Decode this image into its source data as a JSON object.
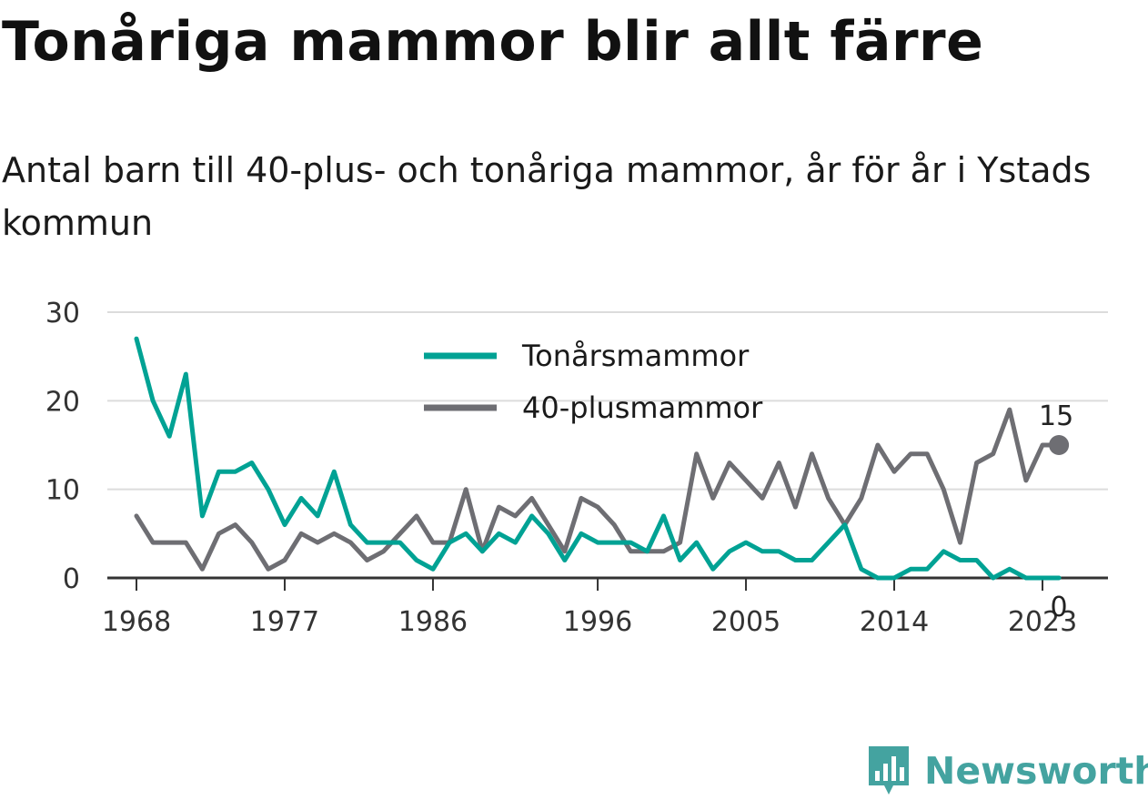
{
  "title": "Tonåriga mammor blir allt färre",
  "subtitle": "Antal barn till 40-plus- och tonåriga mammor, år för år i Ystads kommun",
  "brand": {
    "name": "Newsworthy",
    "color": "#44a3a0",
    "icon": "bar-chart-badge-icon"
  },
  "chart_data": {
    "type": "line",
    "xlim": [
      1967,
      2027
    ],
    "ylim": [
      0,
      30
    ],
    "x_ticks": [
      1968,
      1977,
      1986,
      1996,
      2005,
      2014,
      2023
    ],
    "y_ticks": [
      0,
      10,
      20,
      30
    ],
    "grid": true,
    "legend_position": "top-center",
    "x": [
      1968,
      1969,
      1970,
      1971,
      1972,
      1973,
      1974,
      1975,
      1976,
      1977,
      1978,
      1979,
      1980,
      1981,
      1982,
      1983,
      1984,
      1985,
      1986,
      1987,
      1988,
      1989,
      1990,
      1991,
      1992,
      1993,
      1994,
      1995,
      1996,
      1997,
      1998,
      1999,
      2000,
      2001,
      2002,
      2003,
      2004,
      2005,
      2006,
      2007,
      2008,
      2009,
      2010,
      2011,
      2012,
      2013,
      2014,
      2015,
      2016,
      2017,
      2018,
      2019,
      2020,
      2021,
      2022,
      2023,
      2024
    ],
    "series": [
      {
        "name": "Tonårsmammor",
        "color": "#00a294",
        "end_label": "0",
        "values": [
          27,
          20,
          16,
          23,
          7,
          12,
          12,
          13,
          10,
          6,
          9,
          7,
          12,
          6,
          4,
          4,
          4,
          2,
          1,
          4,
          5,
          3,
          5,
          4,
          7,
          5,
          2,
          5,
          4,
          4,
          4,
          3,
          7,
          2,
          4,
          1,
          3,
          4,
          3,
          3,
          2,
          2,
          4,
          6,
          1,
          0,
          0,
          1,
          1,
          3,
          2,
          2,
          0,
          1,
          0,
          0,
          0
        ]
      },
      {
        "name": "40-plusmammor",
        "color": "#6e6e73",
        "end_label": "15",
        "values": [
          7,
          4,
          4,
          4,
          1,
          5,
          6,
          4,
          1,
          2,
          5,
          4,
          5,
          4,
          2,
          3,
          5,
          7,
          4,
          4,
          10,
          3,
          8,
          7,
          9,
          6,
          3,
          9,
          8,
          6,
          3,
          3,
          3,
          4,
          14,
          9,
          13,
          11,
          9,
          13,
          8,
          14,
          9,
          6,
          9,
          15,
          12,
          14,
          14,
          10,
          4,
          13,
          14,
          19,
          11,
          15,
          15
        ]
      }
    ]
  }
}
